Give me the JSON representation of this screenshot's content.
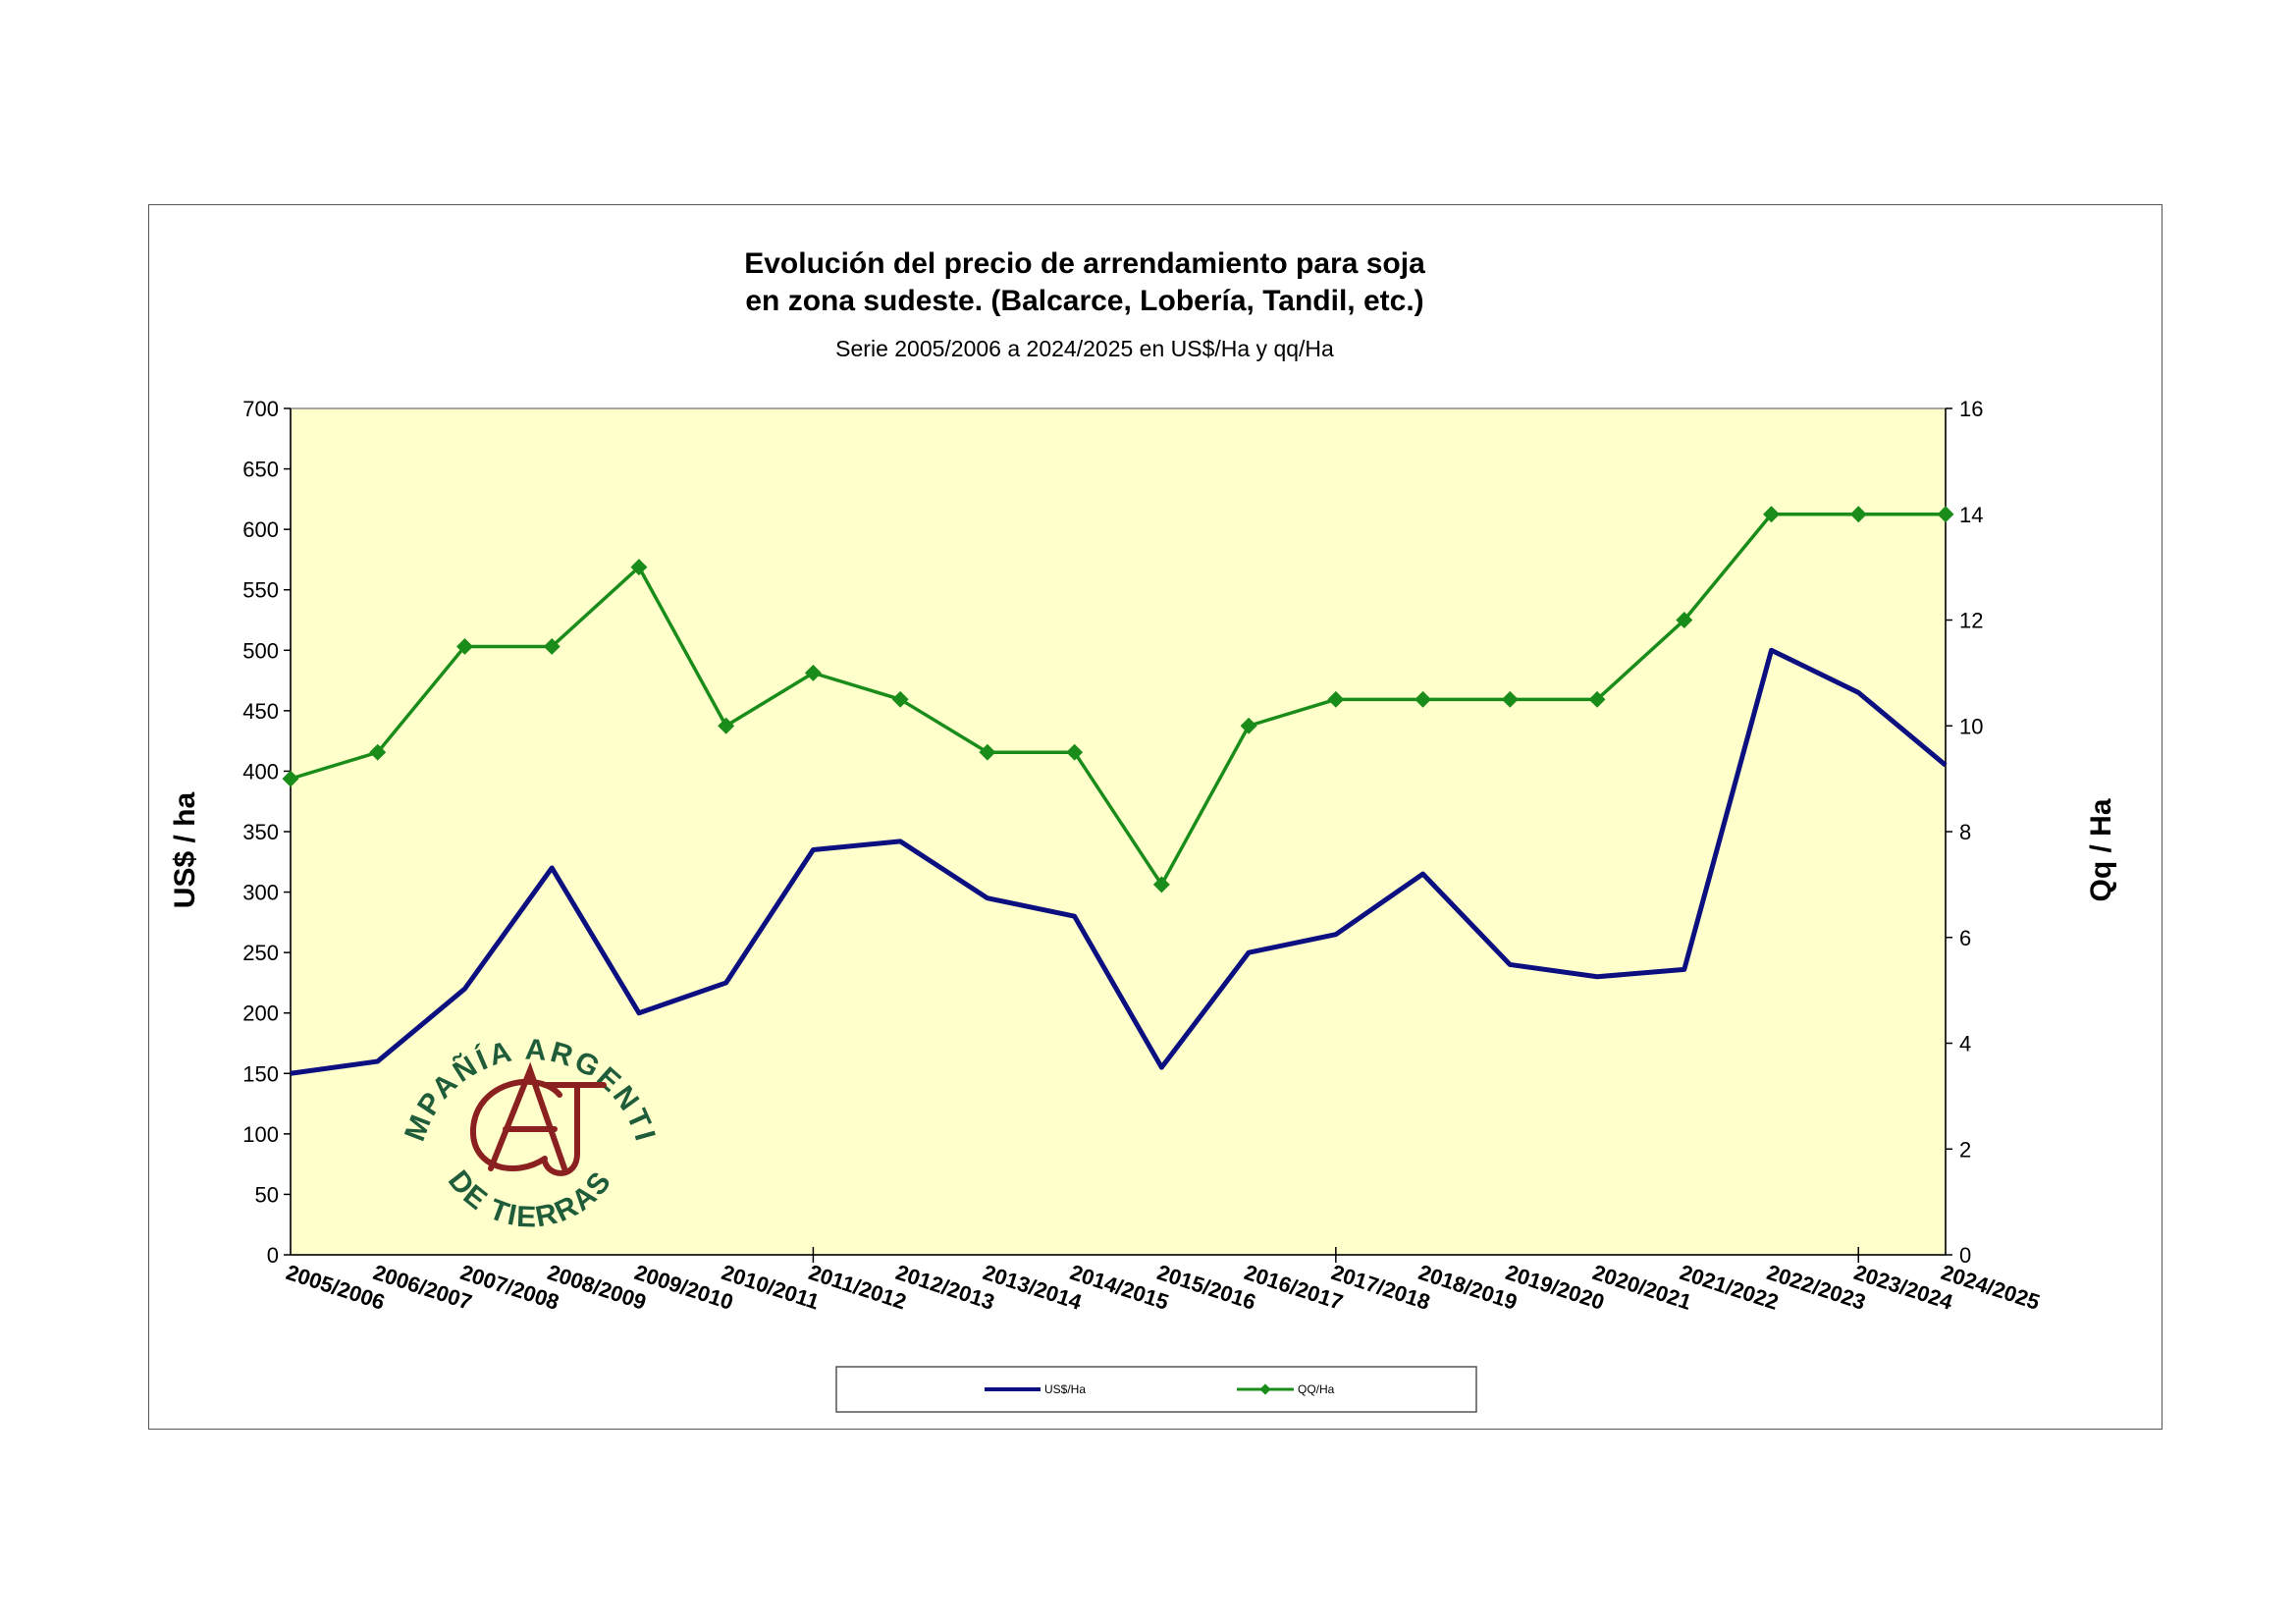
{
  "chart_data": {
    "type": "line",
    "title": "Evolución del precio de arrendamiento para soja",
    "title_line2": "en zona sudeste. (Balcarce, Lobería, Tandil, etc.)",
    "subtitle": "Serie 2005/2006 a 2024/2025 en US$/Ha y qq/Ha",
    "ylabel": "US$ / ha",
    "y2label": "Qq / Ha",
    "ylim": [
      0,
      700
    ],
    "y2lim": [
      0,
      16
    ],
    "yticks": [
      0,
      50,
      100,
      150,
      200,
      250,
      300,
      350,
      400,
      450,
      500,
      550,
      600,
      650,
      700
    ],
    "y2ticks": [
      0,
      2,
      4,
      6,
      8,
      10,
      12,
      14,
      16
    ],
    "categories": [
      "2005/2006",
      "2006/2007",
      "2007/2008",
      "2008/2009",
      "2009/2010",
      "2010/2011",
      "2011/2012",
      "2012/2013",
      "2013/2014",
      "2014/2015",
      "2015/2016",
      "2016/2017",
      "2017/2018",
      "2018/2019",
      "2019/2020",
      "2020/2021",
      "2021/2022",
      "2022/2023",
      "2023/2024",
      "2024/2025"
    ],
    "series": [
      {
        "name": "US$/Ha",
        "axis": "left",
        "color": "#0b0f80",
        "values": [
          150,
          160,
          220,
          320,
          200,
          225,
          335,
          342,
          295,
          280,
          155,
          250,
          265,
          315,
          240,
          230,
          236,
          500,
          465,
          405
        ]
      },
      {
        "name": "QQ/Ha",
        "axis": "right",
        "color": "#1a8c1a",
        "values": [
          9,
          9.5,
          11.5,
          11.5,
          13,
          10,
          11,
          10.5,
          9.5,
          9.5,
          7,
          10,
          10.5,
          10.5,
          10.5,
          10.5,
          12,
          14,
          14,
          14
        ]
      }
    ],
    "plot_background": "#ffffcc",
    "grid": false,
    "legend_position": "bottom"
  },
  "logo": {
    "text_top": "COMPAÑÍA ARGENTINA",
    "text_bottom": "DE TIERRAS",
    "monogram": "CAT",
    "ring_color": "#1f5c3a",
    "monogram_color": "#8b2020"
  }
}
